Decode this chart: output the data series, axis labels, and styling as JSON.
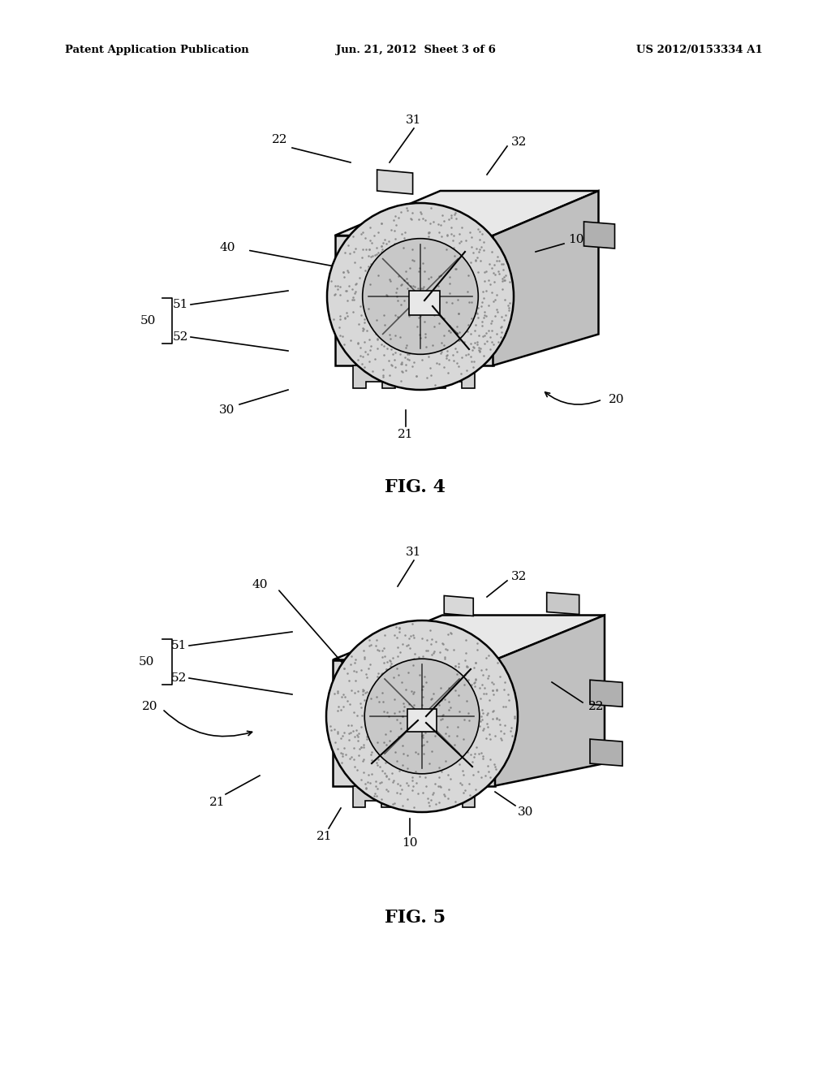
{
  "bg_color": "#ffffff",
  "line_color": "#000000",
  "header_left": "Patent Application Publication",
  "header_center": "Jun. 21, 2012  Sheet 3 of 6",
  "header_right": "US 2012/0153334 A1",
  "fig4_label": "FIG. 4",
  "fig5_label": "FIG. 5"
}
